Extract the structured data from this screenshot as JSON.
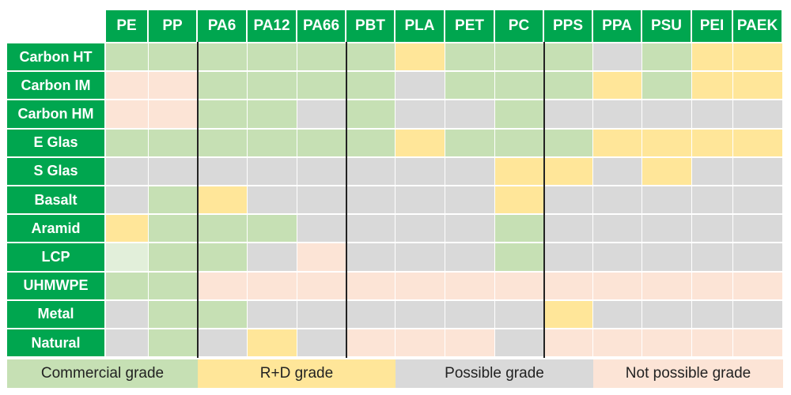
{
  "chart_data": {
    "type": "heatmap",
    "columns": [
      "PE",
      "PP",
      "PA6",
      "PA12",
      "PA66",
      "PBT",
      "PLA",
      "PET",
      "PC",
      "PPS",
      "PPA",
      "PSU",
      "PEI",
      "PAEK"
    ],
    "rows": [
      "Carbon HT",
      "Carbon IM",
      "Carbon HM",
      "E Glas",
      "S Glas",
      "Basalt",
      "Aramid",
      "LCP",
      "UHMWPE",
      "Metal",
      "Natural"
    ],
    "categories": {
      "C": "Commercial grade",
      "R": "R+D grade",
      "P": "Possible grade",
      "N": "Not possible grade",
      "L": ""
    },
    "colors": {
      "C": "#c6e0b4",
      "R": "#ffe699",
      "P": "#d9d9d9",
      "N": "#fce4d6",
      "L": "#e2efda",
      "header": "#00a64f"
    },
    "cells": [
      [
        "C",
        "C",
        "C",
        "C",
        "C",
        "C",
        "R",
        "C",
        "C",
        "C",
        "P",
        "C",
        "R",
        "R"
      ],
      [
        "N",
        "N",
        "C",
        "C",
        "C",
        "C",
        "P",
        "C",
        "C",
        "C",
        "R",
        "C",
        "R",
        "R"
      ],
      [
        "N",
        "N",
        "C",
        "C",
        "P",
        "C",
        "P",
        "P",
        "C",
        "P",
        "P",
        "P",
        "P",
        "P"
      ],
      [
        "C",
        "C",
        "C",
        "C",
        "C",
        "C",
        "R",
        "C",
        "C",
        "C",
        "R",
        "R",
        "R",
        "R"
      ],
      [
        "P",
        "P",
        "P",
        "P",
        "P",
        "P",
        "P",
        "P",
        "R",
        "R",
        "P",
        "R",
        "P",
        "P"
      ],
      [
        "P",
        "C",
        "R",
        "P",
        "P",
        "P",
        "P",
        "P",
        "R",
        "P",
        "P",
        "P",
        "P",
        "P"
      ],
      [
        "R",
        "C",
        "C",
        "C",
        "P",
        "P",
        "P",
        "P",
        "C",
        "P",
        "P",
        "P",
        "P",
        "P"
      ],
      [
        "L",
        "C",
        "C",
        "P",
        "N",
        "P",
        "P",
        "P",
        "C",
        "P",
        "P",
        "P",
        "P",
        "P"
      ],
      [
        "C",
        "C",
        "N",
        "N",
        "N",
        "N",
        "N",
        "N",
        "N",
        "N",
        "N",
        "N",
        "N",
        "N"
      ],
      [
        "P",
        "C",
        "C",
        "P",
        "P",
        "P",
        "P",
        "P",
        "P",
        "R",
        "P",
        "P",
        "P",
        "P"
      ],
      [
        "P",
        "C",
        "P",
        "R",
        "P",
        "N",
        "N",
        "N",
        "P",
        "N",
        "N",
        "N",
        "N",
        "N"
      ]
    ],
    "legend": [
      "C",
      "R",
      "P",
      "N"
    ]
  }
}
